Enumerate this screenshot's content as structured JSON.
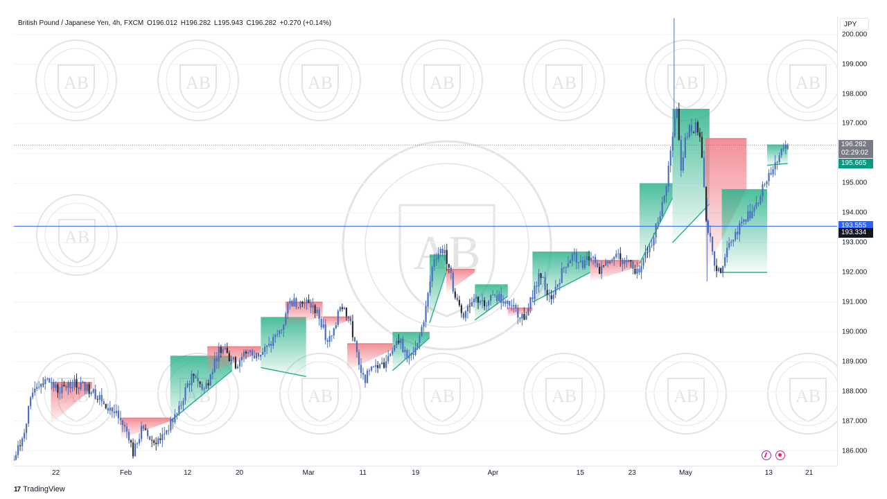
{
  "legend": {
    "symbol": "British Pound / Japanese Yen, 4h, FXCM",
    "open": "O196.012",
    "high": "H196.282",
    "low": "L195.943",
    "close": "C196.282",
    "change": "+0.270 (+0.14%)"
  },
  "currency": "JPY",
  "branding": {
    "logo_text": "TradingView",
    "logo_mark": "17"
  },
  "watermark": {
    "text": "ARABIAN BUSINESS ACADEMY",
    "monogram": "AB"
  },
  "price_tags": {
    "last_price": "196.282",
    "countdown": "02:29:02",
    "indicator_level": "195.665",
    "horizontal_line": "193.555",
    "crosshair": "193.334"
  },
  "colors": {
    "candle": "#4a6fbf",
    "candle_dark": "#2b2b2b",
    "red_band": "#f07c86",
    "green_band": "#2bb38a",
    "horizontal_line": "#2962ff",
    "tag_last": "#787b86",
    "tag_indicator": "#089981",
    "tag_line": "#2962ff",
    "tag_crosshair": "#131722"
  },
  "chart_data": {
    "type": "candlestick",
    "interval": "4h",
    "x_ticks": [
      "22",
      "Feb",
      "12",
      "20",
      "Mar",
      "11",
      "19",
      "Apr",
      "15",
      "23",
      "May",
      "13",
      "21"
    ],
    "y_ticks": [
      "186.000",
      "187.000",
      "188.000",
      "189.000",
      "190.000",
      "191.000",
      "192.000",
      "193.000",
      "194.000",
      "195.000",
      "196.000",
      "197.000",
      "198.000",
      "199.000",
      "200.000"
    ],
    "ylim": [
      185.5,
      200.6
    ],
    "last_close": 196.282,
    "horizontal_line": 193.555,
    "close_path": [
      [
        0,
        185.7
      ],
      [
        0.01,
        186.4
      ],
      [
        0.025,
        188.2
      ],
      [
        0.04,
        188.4
      ],
      [
        0.055,
        188.0
      ],
      [
        0.07,
        188.3
      ],
      [
        0.085,
        188.2
      ],
      [
        0.1,
        187.9
      ],
      [
        0.115,
        187.5
      ],
      [
        0.13,
        187.0
      ],
      [
        0.14,
        186.5
      ],
      [
        0.145,
        185.9
      ],
      [
        0.155,
        186.7
      ],
      [
        0.17,
        186.3
      ],
      [
        0.18,
        186.5
      ],
      [
        0.19,
        186.9
      ],
      [
        0.2,
        187.3
      ],
      [
        0.21,
        188.2
      ],
      [
        0.22,
        188.6
      ],
      [
        0.23,
        188.0
      ],
      [
        0.24,
        188.6
      ],
      [
        0.25,
        189.5
      ],
      [
        0.26,
        189.2
      ],
      [
        0.27,
        188.9
      ],
      [
        0.28,
        189.3
      ],
      [
        0.295,
        189.2
      ],
      [
        0.31,
        189.5
      ],
      [
        0.325,
        190.1
      ],
      [
        0.335,
        191.0
      ],
      [
        0.345,
        191.0
      ],
      [
        0.36,
        190.9
      ],
      [
        0.37,
        190.6
      ],
      [
        0.375,
        190.2
      ],
      [
        0.38,
        189.6
      ],
      [
        0.39,
        190.0
      ],
      [
        0.395,
        191.0
      ],
      [
        0.405,
        190.6
      ],
      [
        0.415,
        189.6
      ],
      [
        0.42,
        188.6
      ],
      [
        0.425,
        188.4
      ],
      [
        0.435,
        188.7
      ],
      [
        0.45,
        188.9
      ],
      [
        0.46,
        189.5
      ],
      [
        0.47,
        189.6
      ],
      [
        0.48,
        189.1
      ],
      [
        0.49,
        189.5
      ],
      [
        0.5,
        190.7
      ],
      [
        0.51,
        192.5
      ],
      [
        0.52,
        192.8
      ],
      [
        0.53,
        192.2
      ],
      [
        0.535,
        191.2
      ],
      [
        0.545,
        190.6
      ],
      [
        0.555,
        190.9
      ],
      [
        0.565,
        191.1
      ],
      [
        0.575,
        191.0
      ],
      [
        0.585,
        191.2
      ],
      [
        0.6,
        191.0
      ],
      [
        0.61,
        190.7
      ],
      [
        0.62,
        190.5
      ],
      [
        0.63,
        191.2
      ],
      [
        0.64,
        192.0
      ],
      [
        0.65,
        191.1
      ],
      [
        0.66,
        191.6
      ],
      [
        0.67,
        192.3
      ],
      [
        0.68,
        192.6
      ],
      [
        0.69,
        192.2
      ],
      [
        0.7,
        192.6
      ],
      [
        0.71,
        192.0
      ],
      [
        0.72,
        192.3
      ],
      [
        0.73,
        192.7
      ],
      [
        0.74,
        192.2
      ],
      [
        0.75,
        192.5
      ],
      [
        0.755,
        191.9
      ],
      [
        0.765,
        192.5
      ],
      [
        0.775,
        192.9
      ],
      [
        0.78,
        193.5
      ],
      [
        0.79,
        194.5
      ],
      [
        0.795,
        195.5
      ],
      [
        0.8,
        196.5
      ],
      [
        0.805,
        197.6
      ],
      [
        0.81,
        195.5
      ],
      [
        0.815,
        196.4
      ],
      [
        0.82,
        196.8
      ],
      [
        0.83,
        196.9
      ],
      [
        0.835,
        196.3
      ],
      [
        0.84,
        194.0
      ],
      [
        0.845,
        193.2
      ],
      [
        0.85,
        192.4
      ],
      [
        0.86,
        191.8
      ],
      [
        0.865,
        192.9
      ],
      [
        0.875,
        193.2
      ],
      [
        0.885,
        193.8
      ],
      [
        0.895,
        194.0
      ],
      [
        0.905,
        194.5
      ],
      [
        0.915,
        195.2
      ],
      [
        0.925,
        195.6
      ],
      [
        0.935,
        196.3
      ],
      [
        0.94,
        196.28
      ]
    ],
    "bands": [
      {
        "type": "red",
        "x0": 0.045,
        "x1": 0.095,
        "top": 188.3,
        "bottom": 186.9,
        "bottom_end": 188.1
      },
      {
        "type": "red",
        "x0": 0.13,
        "x1": 0.19,
        "top": 187.1,
        "bottom": 186.4,
        "bottom_end": 187.0
      },
      {
        "type": "green",
        "x0": 0.19,
        "x1": 0.265,
        "top": 189.2,
        "bottom": 187.0,
        "bottom_end": 188.7
      },
      {
        "type": "red",
        "x0": 0.235,
        "x1": 0.3,
        "top": 189.5,
        "bottom": 188.6,
        "bottom_end": 189.3
      },
      {
        "type": "green",
        "x0": 0.3,
        "x1": 0.355,
        "top": 190.5,
        "bottom": 188.8,
        "bottom_end": 188.5
      },
      {
        "type": "red",
        "x0": 0.33,
        "x1": 0.375,
        "top": 191.0,
        "bottom": 190.2,
        "bottom_end": 190.5
      },
      {
        "type": "red",
        "x0": 0.375,
        "x1": 0.41,
        "top": 190.5,
        "bottom": 190.1,
        "bottom_end": 190.4
      },
      {
        "type": "red",
        "x0": 0.405,
        "x1": 0.46,
        "top": 189.6,
        "bottom": 188.7,
        "bottom_end": 189.4
      },
      {
        "type": "green",
        "x0": 0.46,
        "x1": 0.505,
        "top": 190.0,
        "bottom": 188.7,
        "bottom_end": 189.8
      },
      {
        "type": "green",
        "x0": 0.505,
        "x1": 0.525,
        "top": 192.6,
        "bottom": 190.3,
        "bottom_end": 192.0
      },
      {
        "type": "red",
        "x0": 0.525,
        "x1": 0.56,
        "top": 192.1,
        "bottom": 191.3,
        "bottom_end": 192.0
      },
      {
        "type": "green",
        "x0": 0.56,
        "x1": 0.6,
        "top": 191.6,
        "bottom": 190.4,
        "bottom_end": 191.2
      },
      {
        "type": "red",
        "x0": 0.6,
        "x1": 0.63,
        "top": 190.8,
        "bottom": 190.5,
        "bottom_end": 190.7
      },
      {
        "type": "green",
        "x0": 0.63,
        "x1": 0.7,
        "top": 192.7,
        "bottom": 191.0,
        "bottom_end": 192.0
      },
      {
        "type": "red",
        "x0": 0.7,
        "x1": 0.76,
        "top": 192.4,
        "bottom": 191.7,
        "bottom_end": 192.2
      },
      {
        "type": "green",
        "x0": 0.76,
        "x1": 0.8,
        "top": 195.0,
        "bottom": 192.3,
        "bottom_end": 194.5
      },
      {
        "type": "green",
        "x0": 0.8,
        "x1": 0.845,
        "top": 197.5,
        "bottom": 193.0,
        "bottom_end": 194.3
      },
      {
        "type": "red",
        "x0": 0.84,
        "x1": 0.89,
        "top": 196.5,
        "bottom": 192.0,
        "bottom_end": 194.8
      },
      {
        "type": "green",
        "x0": 0.86,
        "x1": 0.915,
        "top": 194.8,
        "bottom": 192.0,
        "bottom_end": 192.0
      },
      {
        "type": "green",
        "x0": 0.915,
        "x1": 0.94,
        "top": 196.3,
        "bottom": 195.6,
        "bottom_end": 195.665
      }
    ]
  }
}
